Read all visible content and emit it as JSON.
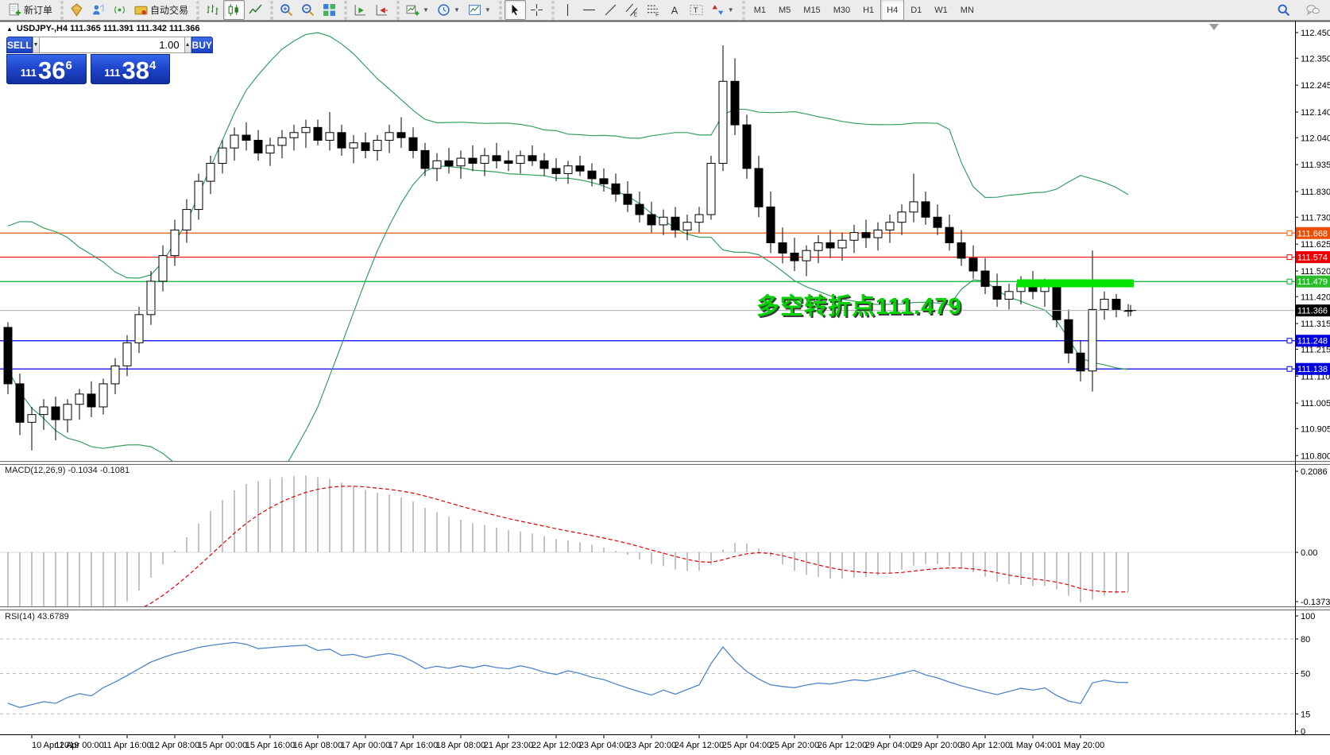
{
  "header": {
    "title": "USDJPY-,H4 111.365 111.391 111.342 111.366",
    "collapse_glyph": "▲"
  },
  "toolbar": {
    "groups": [
      {
        "items": [
          {
            "name": "new-order-button",
            "icon": "new-order",
            "label": "新订单"
          }
        ]
      },
      {
        "items": [
          {
            "name": "market-button",
            "icon": "market"
          },
          {
            "name": "profile-button",
            "icon": "profile"
          },
          {
            "name": "signals-button",
            "icon": "signals"
          },
          {
            "name": "autotrading-button",
            "icon": "autotrading",
            "label": "自动交易"
          }
        ]
      },
      {
        "items": [
          {
            "name": "bar-chart-button",
            "icon": "bars"
          },
          {
            "name": "candlestick-button",
            "icon": "candles",
            "active": true
          },
          {
            "name": "line-chart-button",
            "icon": "line"
          }
        ]
      },
      {
        "items": [
          {
            "name": "zoom-in-button",
            "icon": "zoom-in"
          },
          {
            "name": "zoom-out-button",
            "icon": "zoom-out"
          },
          {
            "name": "tile-windows-button",
            "icon": "tile"
          }
        ]
      },
      {
        "items": [
          {
            "name": "auto-scroll-button",
            "icon": "autoscroll"
          },
          {
            "name": "chart-shift-button",
            "icon": "chartshift"
          }
        ]
      },
      {
        "items": [
          {
            "name": "new-chart-button",
            "icon": "new-chart",
            "dropdown": true
          },
          {
            "name": "profiles-button",
            "icon": "clock",
            "dropdown": true
          },
          {
            "name": "templates-button",
            "icon": "template",
            "dropdown": true
          }
        ]
      },
      {
        "items": [
          {
            "name": "cursor-button",
            "icon": "cursor",
            "active": true
          },
          {
            "name": "crosshair-button",
            "icon": "crosshair"
          }
        ]
      },
      {
        "items": [
          {
            "name": "vline-button",
            "icon": "vline"
          },
          {
            "name": "hline-button",
            "icon": "hline"
          },
          {
            "name": "trendline-button",
            "icon": "trendline"
          },
          {
            "name": "channel-button",
            "icon": "channel"
          },
          {
            "name": "fibonacci-button",
            "icon": "fibo"
          },
          {
            "name": "text-button",
            "icon": "text-a"
          },
          {
            "name": "label-button",
            "icon": "label-t"
          },
          {
            "name": "shapes-button",
            "icon": "shapes",
            "dropdown": true
          }
        ]
      },
      {
        "items": [
          {
            "name": "tf-m1-button",
            "label": "M1"
          },
          {
            "name": "tf-m5-button",
            "label": "M5"
          },
          {
            "name": "tf-m15-button",
            "label": "M15"
          },
          {
            "name": "tf-m30-button",
            "label": "M30"
          },
          {
            "name": "tf-h1-button",
            "label": "H1"
          },
          {
            "name": "tf-h4-button",
            "label": "H4",
            "active": true
          },
          {
            "name": "tf-d1-button",
            "label": "D1"
          },
          {
            "name": "tf-w1-button",
            "label": "W1"
          },
          {
            "name": "tf-mn-button",
            "label": "MN"
          }
        ]
      }
    ],
    "right_items": [
      {
        "name": "search-button",
        "icon": "search"
      },
      {
        "name": "chat-button",
        "icon": "chat"
      }
    ]
  },
  "trade_panel": {
    "sell_label": "SELL",
    "buy_label": "BUY",
    "volume": "1.00",
    "spin_down_glyph": "▼",
    "spin_up_glyph": "▲",
    "sell_price": {
      "prefix": "111",
      "big": "36",
      "sup": "6"
    },
    "buy_price": {
      "prefix": "111",
      "big": "38",
      "sup": "4"
    }
  },
  "annotation": {
    "text": "多空转折点111.479",
    "color": "#00d300"
  },
  "indicators": {
    "bollinger": {
      "period": 20,
      "deviation": 2,
      "color": "#35a060"
    },
    "macd": {
      "label": "MACD(12,26,9) -0.1034 -0.1081",
      "scale": [
        {
          "label": "0.2086",
          "value": 0.2086
        },
        {
          "label": "0.00",
          "value": 0.0
        },
        {
          "label": "-0.1373",
          "value": -0.1373
        }
      ],
      "histogram_color": "#ababab",
      "signal_color": "#e00000"
    },
    "rsi": {
      "label": "RSI(14) 43.6789",
      "scale": [
        {
          "label": "100",
          "value": 100
        },
        {
          "label": "80",
          "value": 80
        },
        {
          "label": "50",
          "value": 50
        },
        {
          "label": "15",
          "value": 15
        },
        {
          "label": "0",
          "value": 0
        }
      ],
      "levels": [
        80,
        50,
        15
      ],
      "color": "#4f86c6"
    }
  },
  "price_axis": {
    "ticks": [
      "112.450",
      "112.350",
      "112.245",
      "112.140",
      "112.040",
      "111.935",
      "111.830",
      "111.730",
      "111.625",
      "111.520",
      "111.420",
      "111.315",
      "111.215",
      "111.110",
      "111.005",
      "110.905",
      "110.800"
    ],
    "badges": [
      {
        "label": "111.668",
        "price": 111.668,
        "color": "#ed4d01"
      },
      {
        "label": "111.574",
        "price": 111.574,
        "color": "#f00000"
      },
      {
        "label": "111.479",
        "price": 111.479,
        "color": "#27be27"
      },
      {
        "label": "111.366",
        "price": 111.366,
        "color": "#000000"
      },
      {
        "label": "111.248",
        "price": 111.248,
        "color": "#0000e0"
      },
      {
        "label": "111.138",
        "price": 111.138,
        "color": "#0000e0"
      }
    ]
  },
  "hlines": [
    {
      "price": 111.668,
      "color": "#ff5a00"
    },
    {
      "price": 111.574,
      "color": "#ff0000"
    },
    {
      "price": 111.479,
      "color": "#00b32c"
    },
    {
      "price": 111.248,
      "color": "#0000ff"
    },
    {
      "price": 111.138,
      "color": "#0000ff"
    }
  ],
  "current_price": {
    "value": 111.366,
    "line_color": "#adadad"
  },
  "support_bar": {
    "start_index": 85,
    "end_index": 94,
    "price": 111.472,
    "color": "#00e400"
  },
  "time_axis": {
    "first_label_index": 2,
    "step": 4,
    "labels": [
      "10 Apr 2019",
      "11 Apr 00:00",
      "11 Apr 16:00",
      "12 Apr 08:00",
      "15 Apr 00:00",
      "15 Apr 16:00",
      "16 Apr 08:00",
      "17 Apr 00:00",
      "17 Apr 16:00",
      "18 Apr 08:00",
      "21 Apr 23:00",
      "22 Apr 12:00",
      "23 Apr 04:00",
      "23 Apr 20:00",
      "24 Apr 12:00",
      "25 Apr 04:00",
      "25 Apr 20:00",
      "26 Apr 12:00",
      "29 Apr 04:00",
      "29 Apr 20:00",
      "30 Apr 12:00",
      "1 May 04:00",
      "1 May 20:00"
    ]
  },
  "chart_data": {
    "type": "candlestick",
    "symbol": "USDJPY-",
    "period": "H4",
    "ylim": [
      110.78,
      112.49
    ],
    "warmup_closes": [
      112.04,
      112.0,
      112.03,
      111.96,
      111.92,
      111.95,
      111.88,
      111.84,
      111.87,
      111.8,
      111.76,
      111.79,
      111.72,
      111.68,
      111.71,
      111.64,
      111.6,
      111.63,
      111.56,
      111.52,
      111.55,
      111.48,
      111.44,
      111.47,
      111.4,
      111.36,
      111.42,
      111.34,
      111.3,
      111.37,
      111.28,
      111.25,
      111.33,
      111.3
    ],
    "candles": [
      [
        111.3,
        111.32,
        111.04,
        111.08
      ],
      [
        111.08,
        111.12,
        110.88,
        110.93
      ],
      [
        110.93,
        110.99,
        110.82,
        110.96
      ],
      [
        110.96,
        111.02,
        110.9,
        110.99
      ],
      [
        110.99,
        111.03,
        110.86,
        110.94
      ],
      [
        110.94,
        111.02,
        110.89,
        111.0
      ],
      [
        111.0,
        111.06,
        110.94,
        111.04
      ],
      [
        111.04,
        111.09,
        110.95,
        110.99
      ],
      [
        110.99,
        111.1,
        110.96,
        111.08
      ],
      [
        111.08,
        111.18,
        111.04,
        111.15
      ],
      [
        111.15,
        111.27,
        111.11,
        111.24
      ],
      [
        111.24,
        111.38,
        111.2,
        111.35
      ],
      [
        111.35,
        111.52,
        111.31,
        111.48
      ],
      [
        111.48,
        111.62,
        111.44,
        111.58
      ],
      [
        111.58,
        111.72,
        111.54,
        111.68
      ],
      [
        111.68,
        111.8,
        111.63,
        111.76
      ],
      [
        111.76,
        111.9,
        111.72,
        111.87
      ],
      [
        111.87,
        111.97,
        111.82,
        111.94
      ],
      [
        111.94,
        112.03,
        111.9,
        112.0
      ],
      [
        112.0,
        112.08,
        111.95,
        112.05
      ],
      [
        112.05,
        112.1,
        111.99,
        112.03
      ],
      [
        112.03,
        112.07,
        111.95,
        111.98
      ],
      [
        111.98,
        112.04,
        111.93,
        112.01
      ],
      [
        112.01,
        112.07,
        111.96,
        112.04
      ],
      [
        112.04,
        112.09,
        111.99,
        112.06
      ],
      [
        112.06,
        112.11,
        112.0,
        112.08
      ],
      [
        112.08,
        112.11,
        112.01,
        112.03
      ],
      [
        112.03,
        112.14,
        111.99,
        112.06
      ],
      [
        112.06,
        112.09,
        111.97,
        112.0
      ],
      [
        112.0,
        112.05,
        111.94,
        112.02
      ],
      [
        112.02,
        112.06,
        111.96,
        111.99
      ],
      [
        111.99,
        112.05,
        111.95,
        112.03
      ],
      [
        112.03,
        112.09,
        111.98,
        112.06
      ],
      [
        112.06,
        112.12,
        112.0,
        112.04
      ],
      [
        112.04,
        112.08,
        111.96,
        111.99
      ],
      [
        111.99,
        112.02,
        111.89,
        111.92
      ],
      [
        111.92,
        111.98,
        111.87,
        111.95
      ],
      [
        111.95,
        112.0,
        111.9,
        111.93
      ],
      [
        111.93,
        111.99,
        111.88,
        111.96
      ],
      [
        111.96,
        112.01,
        111.91,
        111.94
      ],
      [
        111.94,
        112.0,
        111.89,
        111.97
      ],
      [
        111.97,
        112.02,
        111.92,
        111.95
      ],
      [
        111.95,
        111.99,
        111.91,
        111.94
      ],
      [
        111.94,
        111.99,
        111.9,
        111.97
      ],
      [
        111.97,
        112.01,
        111.93,
        111.95
      ],
      [
        111.95,
        111.98,
        111.89,
        111.92
      ],
      [
        111.92,
        111.96,
        111.87,
        111.9
      ],
      [
        111.9,
        111.95,
        111.86,
        111.93
      ],
      [
        111.93,
        111.97,
        111.89,
        111.91
      ],
      [
        111.91,
        111.94,
        111.85,
        111.88
      ],
      [
        111.88,
        111.92,
        111.83,
        111.86
      ],
      [
        111.86,
        111.9,
        111.79,
        111.82
      ],
      [
        111.82,
        111.87,
        111.75,
        111.78
      ],
      [
        111.78,
        111.83,
        111.71,
        111.74
      ],
      [
        111.74,
        111.79,
        111.67,
        111.7
      ],
      [
        111.7,
        111.76,
        111.66,
        111.73
      ],
      [
        111.73,
        111.77,
        111.65,
        111.68
      ],
      [
        111.68,
        111.74,
        111.64,
        111.71
      ],
      [
        111.71,
        111.77,
        111.67,
        111.74
      ],
      [
        111.74,
        111.97,
        111.72,
        111.94
      ],
      [
        111.94,
        112.4,
        111.91,
        112.26
      ],
      [
        112.26,
        112.35,
        112.05,
        112.09
      ],
      [
        112.09,
        112.13,
        111.88,
        111.92
      ],
      [
        111.92,
        111.97,
        111.73,
        111.77
      ],
      [
        111.77,
        111.83,
        111.59,
        111.63
      ],
      [
        111.63,
        111.69,
        111.55,
        111.59
      ],
      [
        111.59,
        111.65,
        111.52,
        111.56
      ],
      [
        111.56,
        111.62,
        111.5,
        111.6
      ],
      [
        111.6,
        111.66,
        111.55,
        111.63
      ],
      [
        111.63,
        111.68,
        111.57,
        111.61
      ],
      [
        111.61,
        111.67,
        111.56,
        111.64
      ],
      [
        111.64,
        111.7,
        111.59,
        111.67
      ],
      [
        111.67,
        111.72,
        111.61,
        111.65
      ],
      [
        111.65,
        111.71,
        111.6,
        111.68
      ],
      [
        111.68,
        111.74,
        111.63,
        111.71
      ],
      [
        111.71,
        111.78,
        111.66,
        111.75
      ],
      [
        111.75,
        111.9,
        111.71,
        111.79
      ],
      [
        111.79,
        111.83,
        111.7,
        111.73
      ],
      [
        111.73,
        111.78,
        111.66,
        111.69
      ],
      [
        111.69,
        111.74,
        111.6,
        111.63
      ],
      [
        111.63,
        111.68,
        111.54,
        111.57
      ],
      [
        111.57,
        111.62,
        111.49,
        111.52
      ],
      [
        111.52,
        111.57,
        111.43,
        111.46
      ],
      [
        111.46,
        111.51,
        111.38,
        111.41
      ],
      [
        111.41,
        111.47,
        111.37,
        111.44
      ],
      [
        111.44,
        111.5,
        111.39,
        111.47
      ],
      [
        111.47,
        111.52,
        111.41,
        111.44
      ],
      [
        111.44,
        111.49,
        111.38,
        111.46
      ],
      [
        111.46,
        111.48,
        111.3,
        111.33
      ],
      [
        111.33,
        111.37,
        111.16,
        111.2
      ],
      [
        111.2,
        111.25,
        111.09,
        111.13
      ],
      [
        111.13,
        111.6,
        111.05,
        111.37
      ],
      [
        111.37,
        111.44,
        111.33,
        111.41
      ],
      [
        111.41,
        111.43,
        111.34,
        111.37
      ],
      [
        111.365,
        111.391,
        111.342,
        111.366
      ]
    ]
  }
}
